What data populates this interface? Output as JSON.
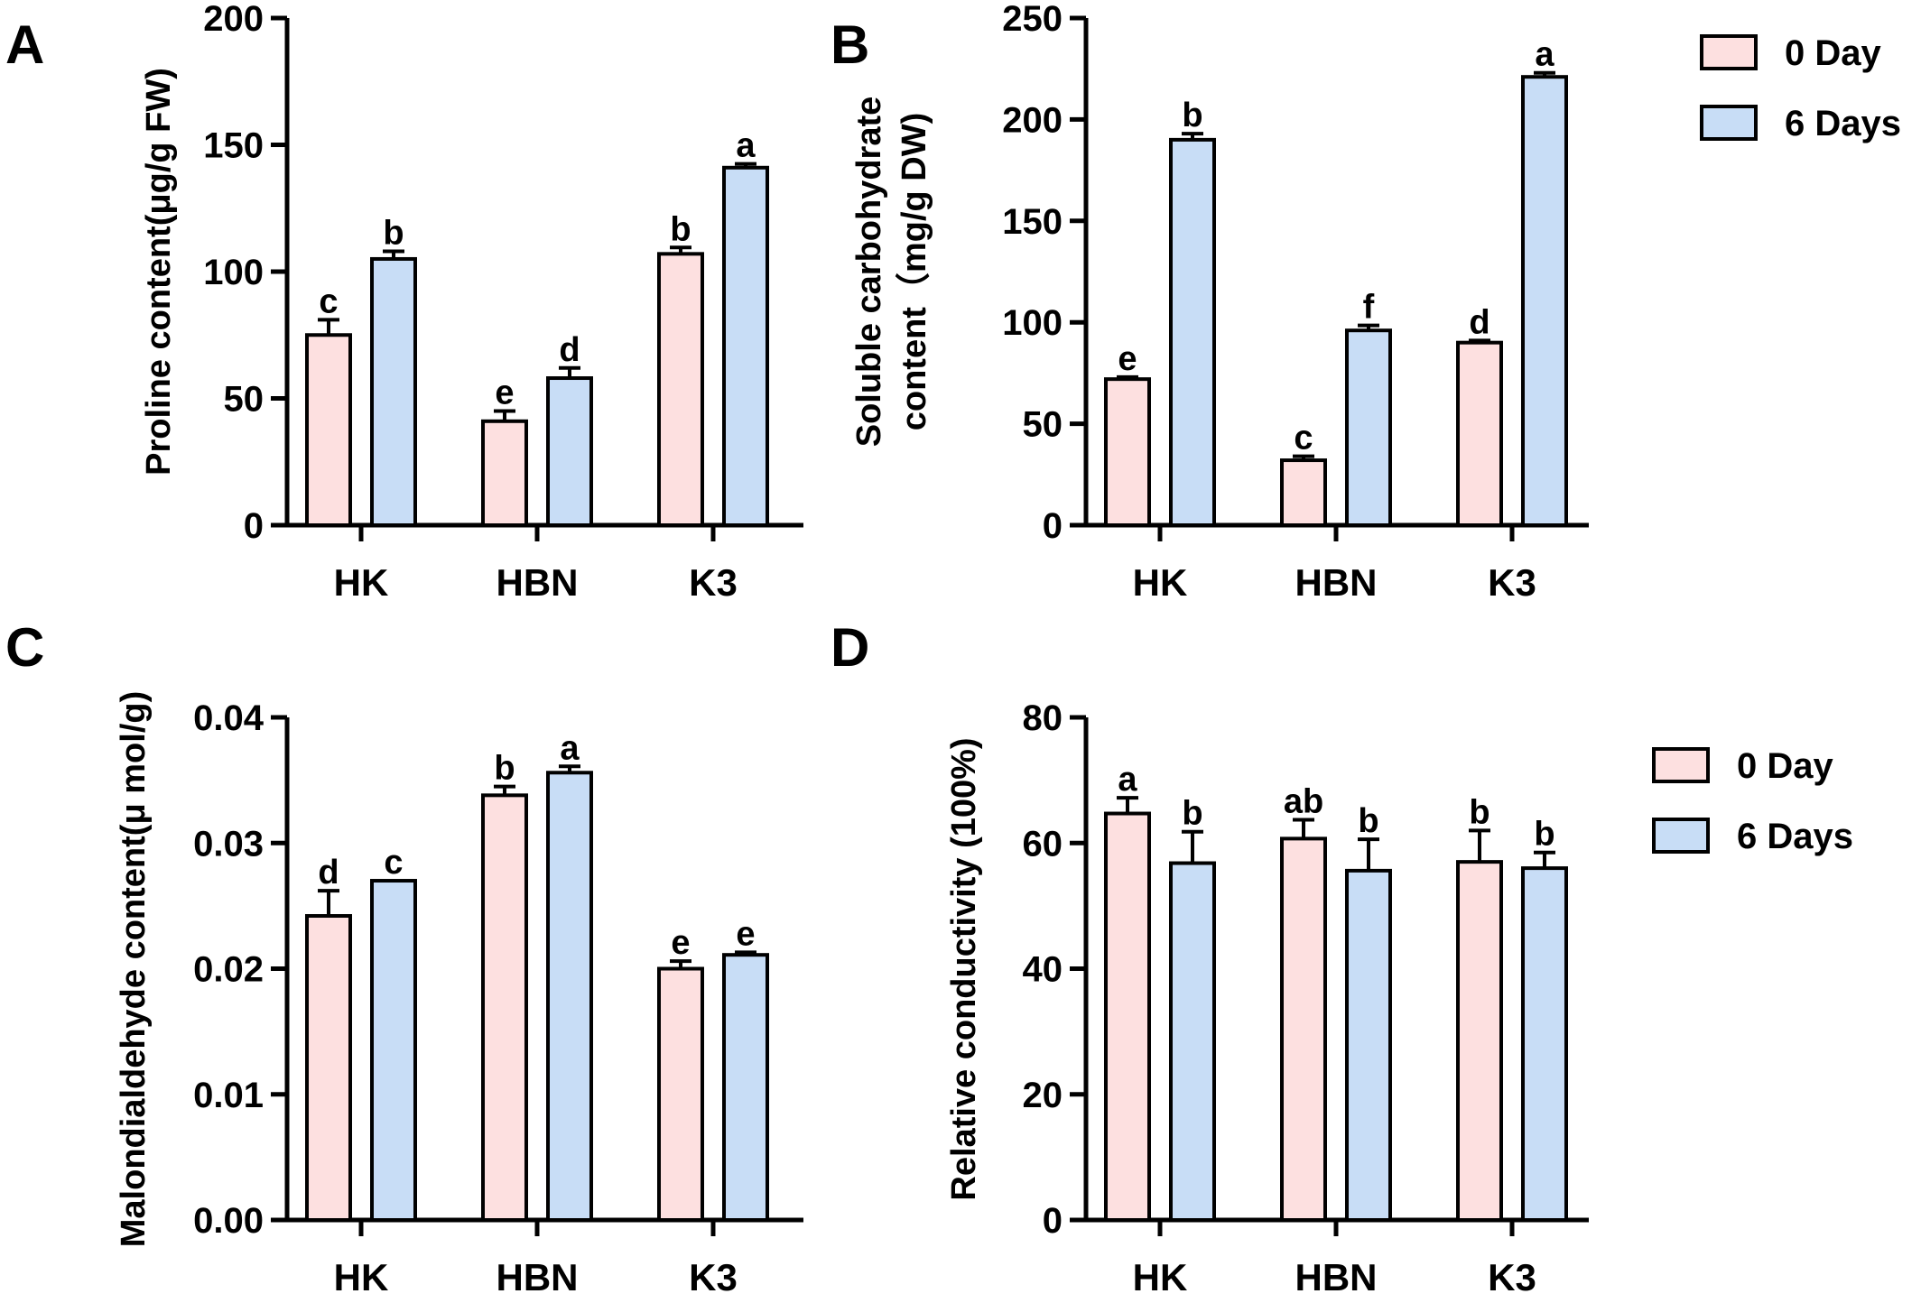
{
  "colors": {
    "day0": "#fde0e0",
    "day6": "#c8ddf6",
    "stroke": "#000000"
  },
  "chart_data": [
    {
      "type": "bar",
      "panel": "A",
      "categories": [
        "HK",
        "HBN",
        "K3"
      ],
      "ylabel": "Proline content(μg/g FW)",
      "ylim": [
        0,
        200
      ],
      "yticks": [
        "0",
        "50",
        "100",
        "150",
        "200"
      ],
      "ytick_values": [
        0,
        50,
        100,
        150,
        200
      ],
      "series": [
        {
          "name": "0 Day",
          "values": [
            75,
            41,
            107
          ],
          "errors": [
            6,
            4,
            2.5
          ],
          "letters": [
            "c",
            "e",
            "b"
          ]
        },
        {
          "name": "6 Days",
          "values": [
            105,
            58,
            141
          ],
          "errors": [
            3,
            4,
            1.5
          ],
          "letters": [
            "b",
            "d",
            "a"
          ]
        }
      ]
    },
    {
      "type": "bar",
      "panel": "B",
      "categories": [
        "HK",
        "HBN",
        "K3"
      ],
      "ylabel": "Soluble carbohydrate content（mg/g DW)",
      "ylabel_lines": [
        "Soluble carbohydrate",
        "content（mg/g DW)"
      ],
      "ylim": [
        0,
        250
      ],
      "yticks": [
        "0",
        "50",
        "100",
        "150",
        "200",
        "250"
      ],
      "ytick_values": [
        0,
        50,
        100,
        150,
        200,
        250
      ],
      "legend": {
        "placement": "top-right",
        "labels": [
          "0 Day",
          "6 Days"
        ]
      },
      "series": [
        {
          "name": "0 Day",
          "values": [
            72,
            32,
            90
          ],
          "errors": [
            1,
            2,
            1
          ],
          "letters": [
            "e",
            "c",
            "d"
          ]
        },
        {
          "name": "6 Days",
          "values": [
            190,
            96,
            221
          ],
          "errors": [
            3,
            2.5,
            2
          ],
          "letters": [
            "b",
            "f",
            "a"
          ]
        }
      ]
    },
    {
      "type": "bar",
      "panel": "C",
      "categories": [
        "HK",
        "HBN",
        "K3"
      ],
      "ylabel": "Malondialdehyde content(μ mol/g)",
      "ylim": [
        0,
        0.04
      ],
      "yticks": [
        "0.00",
        "0.01",
        "0.02",
        "0.03",
        "0.04"
      ],
      "ytick_values": [
        0,
        0.01,
        0.02,
        0.03,
        0.04
      ],
      "series": [
        {
          "name": "0 Day",
          "values": [
            0.0242,
            0.0338,
            0.02
          ],
          "errors": [
            0.002,
            0.0007,
            0.0006
          ],
          "letters": [
            "d",
            "b",
            "e"
          ]
        },
        {
          "name": "6 Days",
          "values": [
            0.027,
            0.0356,
            0.0211
          ],
          "errors": [
            0,
            0.0005,
            0.0002
          ],
          "letters": [
            "c",
            "a",
            "e"
          ]
        }
      ]
    },
    {
      "type": "bar",
      "panel": "D",
      "categories": [
        "HK",
        "HBN",
        "K3"
      ],
      "ylabel": "Relative conductivity (100%)",
      "ylim": [
        0,
        80
      ],
      "yticks": [
        "0",
        "20",
        "40",
        "60",
        "80"
      ],
      "ytick_values": [
        0,
        20,
        40,
        60,
        80
      ],
      "legend": {
        "placement": "right",
        "labels": [
          "0 Day",
          "6 Days"
        ]
      },
      "series": [
        {
          "name": "0 Day",
          "values": [
            64.7,
            60.7,
            57.0
          ],
          "errors": [
            2.5,
            3,
            5
          ],
          "letters": [
            "a",
            "ab",
            "b"
          ]
        },
        {
          "name": "6 Days",
          "values": [
            56.8,
            55.6,
            56.0
          ],
          "errors": [
            5,
            5,
            2.5
          ],
          "letters": [
            "b",
            "b",
            "b"
          ]
        }
      ]
    }
  ]
}
